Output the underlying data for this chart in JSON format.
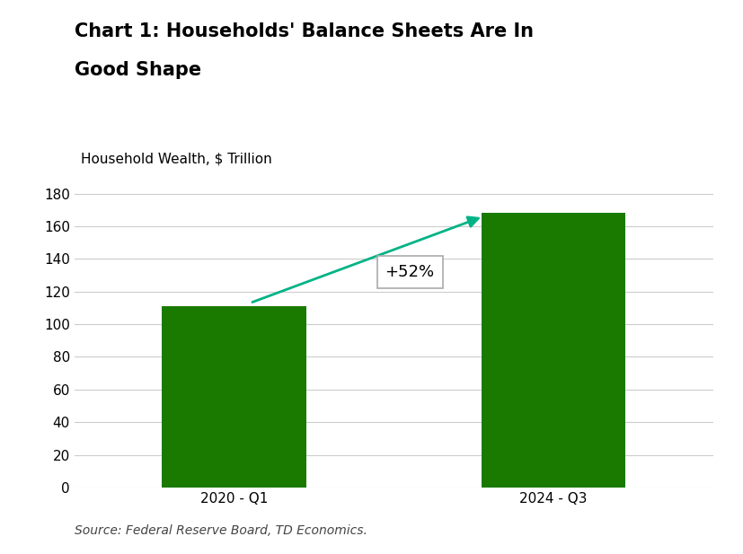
{
  "title_line1": "Chart 1: Households' Balance Sheets Are In",
  "title_line2": "Good Shape",
  "ylabel": "Household Wealth, $ Trillion",
  "categories": [
    "2020 - Q1",
    "2024 - Q3"
  ],
  "values": [
    111,
    168
  ],
  "bar_color": "#1a7a00",
  "ylim": [
    0,
    190
  ],
  "yticks": [
    0,
    20,
    40,
    60,
    80,
    100,
    120,
    140,
    160,
    180
  ],
  "annotation_text": "+52%",
  "source_text": "Source: Federal Reserve Board, TD Economics.",
  "arrow_color": "#00b386",
  "background_color": "#ffffff",
  "title_fontsize": 15,
  "label_fontsize": 11,
  "tick_fontsize": 11,
  "source_fontsize": 10
}
